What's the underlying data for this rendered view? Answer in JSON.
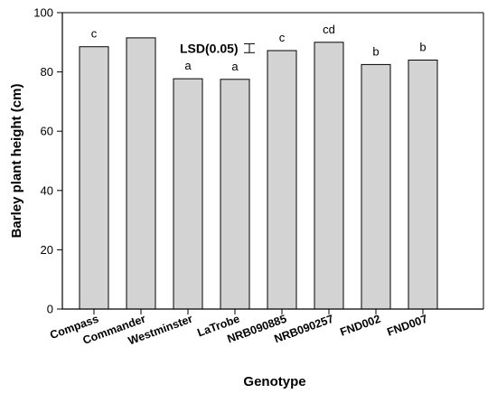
{
  "chart_data": {
    "type": "bar",
    "categories": [
      "Compass",
      "Commander",
      "Westminster",
      "LaTrobe",
      "NRB090885",
      "NRB090257",
      "FND002",
      "FND007"
    ],
    "values": [
      88.5,
      91.5,
      77.7,
      77.5,
      87.2,
      90.0,
      82.5,
      84.0
    ],
    "significance_letters": [
      "c",
      "",
      "a",
      "a",
      "c",
      "cd",
      "b",
      "b"
    ],
    "xlabel": "Genotype",
    "ylabel": "Barley plant height (cm)",
    "ylim": [
      0,
      100
    ],
    "yticks": [
      0,
      20,
      40,
      60,
      80,
      100
    ],
    "grid": false,
    "bar_color": "#d3d3d3",
    "annotation": {
      "text": "LSD(0.05)",
      "error_bar_half_range": 1.5,
      "center_value": 88
    }
  }
}
